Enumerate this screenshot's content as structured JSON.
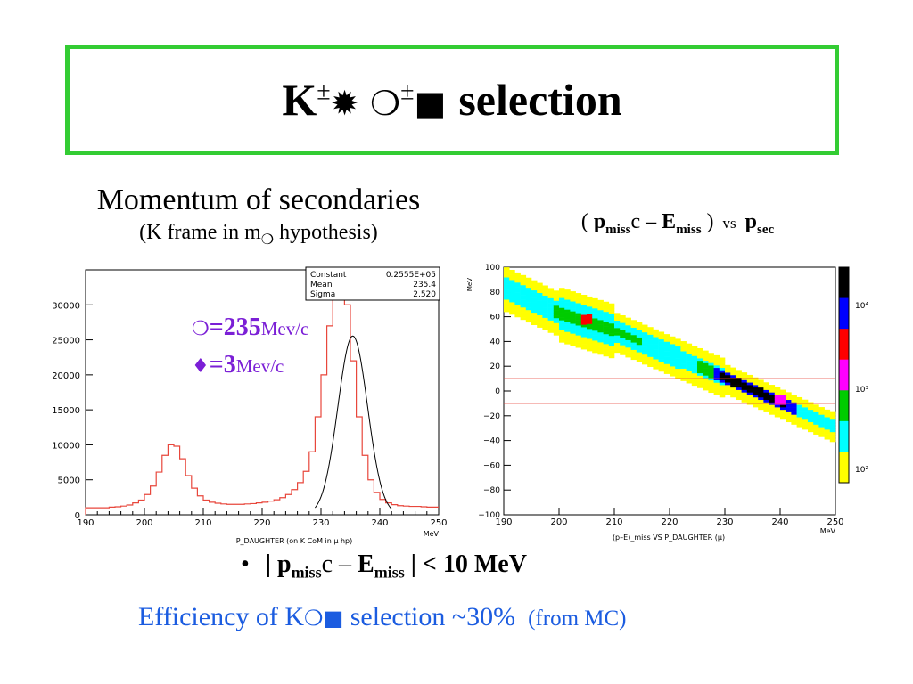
{
  "title": {
    "prefix": "K",
    "sup1": "±",
    "glyph1": "✹",
    "glyph2": "❍",
    "sup2": "±",
    "glyph3": "■",
    "word": "selection"
  },
  "left_heading": {
    "line1": "Momentum of secondaries",
    "line2_a": "(K frame in m",
    "line2_glyph": "❍",
    "line2_b": " hypothesis)"
  },
  "right_heading": {
    "open": "( ",
    "p": "p",
    "p_sub": "miss",
    "c": "c – ",
    "e": "E",
    "e_sub": "miss",
    "close": " )",
    "vs": "vs",
    "p2": "p",
    "p2_sub": "sec"
  },
  "annotations": {
    "line1_glyph": "❍",
    "line1_value": "=235",
    "line1_unit": "Mev/c",
    "line2_glyph": "♦",
    "line2_value": "=3",
    "line2_unit": "Mev/c"
  },
  "bullet": {
    "dot": "•",
    "bar1": "| ",
    "p": "p",
    "p_sub": "miss",
    "c": "c – ",
    "e": "E",
    "e_sub": "miss",
    "rest": " | < 10 MeV"
  },
  "efficiency": {
    "text_a": "Efficiency of K",
    "glyph1": "❍",
    "glyph2": "■",
    "text_b": " selection  ~30%",
    "from": "(from MC)"
  },
  "chart_data": [
    {
      "type": "bar",
      "subtype": "histogram",
      "xlabel": "P_DAUGHTER (on K CoM in μ hp)",
      "xunit": "MeV",
      "xlim": [
        190,
        250
      ],
      "ylim": [
        0,
        35000
      ],
      "xticks": [
        190,
        200,
        210,
        220,
        230,
        240,
        250
      ],
      "yticks": [
        0,
        5000,
        10000,
        15000,
        20000,
        25000,
        30000
      ],
      "stats_box": [
        {
          "label": "Constant",
          "value": "0.2555E+05"
        },
        {
          "label": "Mean",
          "value": "235.4"
        },
        {
          "label": "Sigma",
          "value": "2.520"
        }
      ],
      "histogram_color": "#e8473c",
      "fit_color": "#000000",
      "fit": {
        "constant": 25550,
        "mean": 235.4,
        "sigma": 2.52
      },
      "bins": {
        "x": [
          190.5,
          191.5,
          192.5,
          193.5,
          194.5,
          195.5,
          196.5,
          197.5,
          198.5,
          199.5,
          200.5,
          201.5,
          202.5,
          203.5,
          204.5,
          205.5,
          206.5,
          207.5,
          208.5,
          209.5,
          210.5,
          211.5,
          212.5,
          213.5,
          214.5,
          215.5,
          216.5,
          217.5,
          218.5,
          219.5,
          220.5,
          221.5,
          222.5,
          223.5,
          224.5,
          225.5,
          226.5,
          227.5,
          228.5,
          229.5,
          230.5,
          231.5,
          232.5,
          233.5,
          234.5,
          235.5,
          236.5,
          237.5,
          238.5,
          239.5,
          240.5,
          241.5,
          242.5,
          243.5,
          244.5,
          245.5,
          246.5,
          247.5,
          248.5,
          249.5
        ],
        "y": [
          1000,
          1000,
          1000,
          1000,
          1100,
          1150,
          1250,
          1400,
          1700,
          2100,
          2900,
          4100,
          6100,
          8500,
          10000,
          9800,
          8000,
          5600,
          3800,
          2700,
          2100,
          1800,
          1650,
          1550,
          1500,
          1500,
          1500,
          1550,
          1600,
          1700,
          1800,
          1950,
          2150,
          2450,
          2900,
          3600,
          4600,
          6200,
          9000,
          14000,
          20000,
          27000,
          33000,
          35000,
          30000,
          22000,
          14000,
          8500,
          5000,
          3200,
          2200,
          1700,
          1450,
          1300,
          1250,
          1200,
          1200,
          1150,
          1100,
          1100
        ]
      }
    },
    {
      "type": "heatmap",
      "xlabel": "(p–E)_miss VS P_DAUGHTER (μ)",
      "ylabel": "MeV",
      "xunit": "MeV",
      "xlim": [
        190,
        250
      ],
      "ylim": [
        -100,
        100
      ],
      "xticks": [
        190,
        200,
        210,
        220,
        230,
        240,
        250
      ],
      "yticks": [
        -100,
        -80,
        -60,
        -40,
        -20,
        0,
        20,
        40,
        60,
        80,
        100
      ],
      "cut_lines": [
        10,
        -10
      ],
      "cut_line_color": "#e8473c",
      "colorbar": {
        "labels": [
          "10⁴",
          "10³",
          "10²"
        ],
        "colors": [
          "#ffff00",
          "#00ffff",
          "#00cc00",
          "#ff00ff",
          "#ff0000",
          "#0000ff",
          "#000000"
        ]
      },
      "band": {
        "segments": [
          {
            "x": [
              190,
              200
            ],
            "y_center": [
              83,
              62
            ],
            "width": 18
          },
          {
            "x": [
              200,
              210
            ],
            "y_center": [
              62,
              48
            ],
            "width": 22
          },
          {
            "x": [
              210,
              230
            ],
            "y_center": [
              48,
              10
            ],
            "width": 16
          },
          {
            "x": [
              230,
              250
            ],
            "y_center": [
              10,
              -30
            ],
            "width": 12
          }
        ],
        "core": [
          {
            "x": 205,
            "y": 57,
            "level": 4
          },
          {
            "x": 232,
            "y": 6,
            "level": 6
          },
          {
            "x": 236,
            "y": -1,
            "level": 6
          },
          {
            "x": 240,
            "y": -8,
            "level": 3
          }
        ]
      }
    }
  ]
}
